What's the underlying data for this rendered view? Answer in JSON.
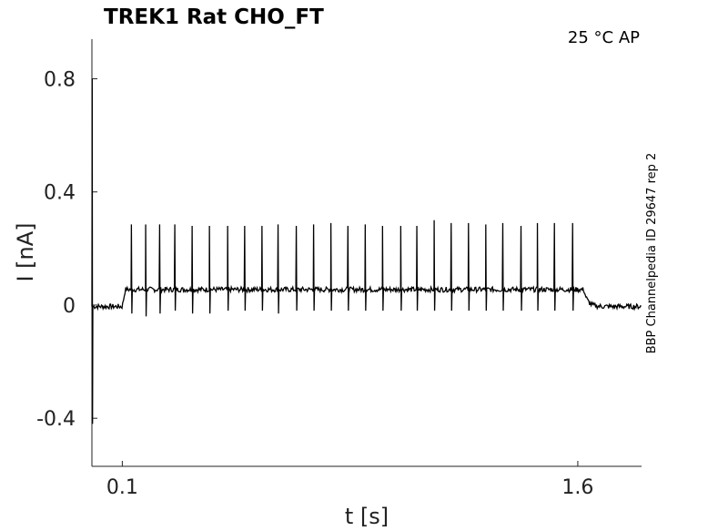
{
  "chart_data": {
    "type": "line",
    "title": "TREK1  Rat  CHO_FT",
    "annotation": "25 °C  AP",
    "side_label": "BBP Channelpedia ID 29647 rep 2",
    "xlabel": "t [s]",
    "ylabel": "I [nA]",
    "xlim": [
      0.0,
      1.81
    ],
    "ylim": [
      -0.57,
      0.94
    ],
    "x_ticks": [
      {
        "value": 0.1,
        "label": "0.1"
      },
      {
        "value": 1.6,
        "label": "1.6"
      }
    ],
    "y_ticks": [
      {
        "value": 0.8,
        "label": "0.8"
      },
      {
        "value": 0.4,
        "label": "0.4"
      },
      {
        "value": 0,
        "label": "0"
      },
      {
        "value": -0.4,
        "label": "-0.4"
      }
    ],
    "baseline_level": -0.005,
    "plateau_level": 0.055,
    "step_on": 0.11,
    "step_off": 1.62,
    "initial_transient_peak": 0.8,
    "initial_transient_trough": -0.42,
    "spike_times": [
      0.13,
      0.177,
      0.223,
      0.273,
      0.33,
      0.387,
      0.447,
      0.503,
      0.56,
      0.613,
      0.673,
      0.73,
      0.787,
      0.843,
      0.9,
      0.957,
      1.017,
      1.07,
      1.127,
      1.183,
      1.24,
      1.297,
      1.353,
      1.413,
      1.467,
      1.523,
      1.583
    ],
    "spike_peaks": [
      0.285,
      0.285,
      0.285,
      0.285,
      0.28,
      0.28,
      0.28,
      0.28,
      0.28,
      0.285,
      0.28,
      0.285,
      0.29,
      0.28,
      0.285,
      0.28,
      0.28,
      0.28,
      0.3,
      0.29,
      0.29,
      0.285,
      0.29,
      0.28,
      0.29,
      0.29,
      0.29
    ],
    "spike_troughs": [
      0.01,
      0.0,
      0.01,
      0.02,
      0.01,
      0.01,
      0.02,
      0.02,
      0.02,
      0.01,
      0.02,
      0.02,
      0.02,
      0.02,
      0.02,
      0.02,
      0.02,
      0.02,
      0.02,
      0.02,
      0.02,
      0.02,
      0.02,
      0.02,
      0.02,
      0.02,
      0.02
    ],
    "grid": false,
    "color": "#000000"
  }
}
